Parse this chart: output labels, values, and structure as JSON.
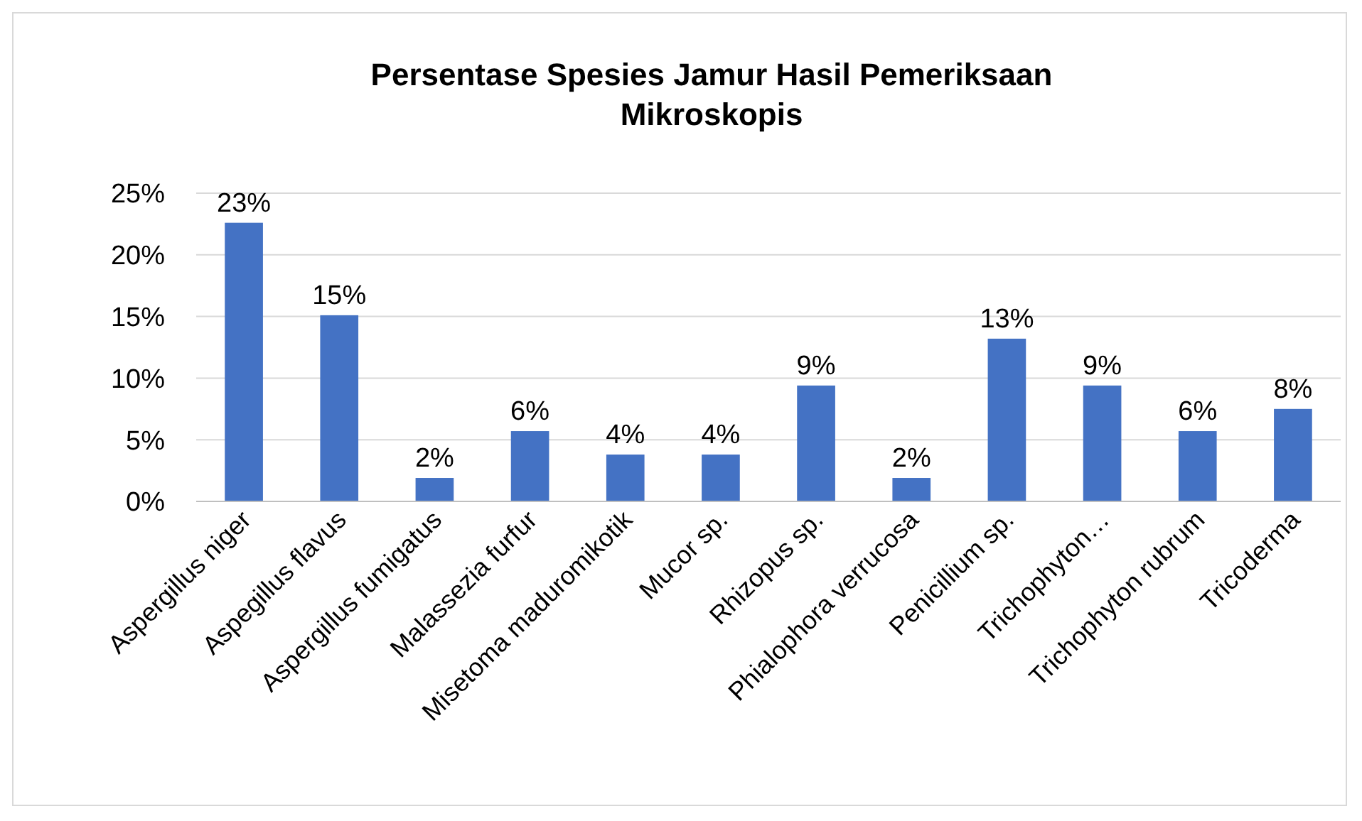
{
  "chart_data": {
    "type": "bar",
    "title": "Persentase Spesies Jamur Hasil Pemeriksaan Mikroskopis",
    "categories": [
      "Aspergillus niger",
      "Aspegillus flavus",
      "Aspergillus fumigatus",
      "Malassezia furfur",
      "Misetoma maduromikotik",
      "Mucor sp.",
      "Rhizopus sp.",
      "Phialophora verrucosa",
      "Penicillium sp.",
      "Trichophyton…",
      "Trichophyton rubrum",
      "Tricoderma"
    ],
    "values": [
      22.6,
      15.1,
      1.9,
      5.7,
      3.8,
      3.8,
      9.4,
      1.9,
      13.2,
      9.4,
      5.7,
      7.5
    ],
    "value_labels": [
      "23%",
      "15%",
      "2%",
      "6%",
      "4%",
      "4%",
      "9%",
      "2%",
      "13%",
      "9%",
      "6%",
      "8%"
    ],
    "color": "#4472c4",
    "ylim": [
      0,
      25
    ],
    "yticks": [
      {
        "value": 0,
        "label": "0%"
      },
      {
        "value": 5,
        "label": "5%"
      },
      {
        "value": 10,
        "label": "10%"
      },
      {
        "value": 15,
        "label": "15%"
      },
      {
        "value": 20,
        "label": "20%"
      },
      {
        "value": 25,
        "label": "25%"
      }
    ],
    "grid": "y"
  }
}
